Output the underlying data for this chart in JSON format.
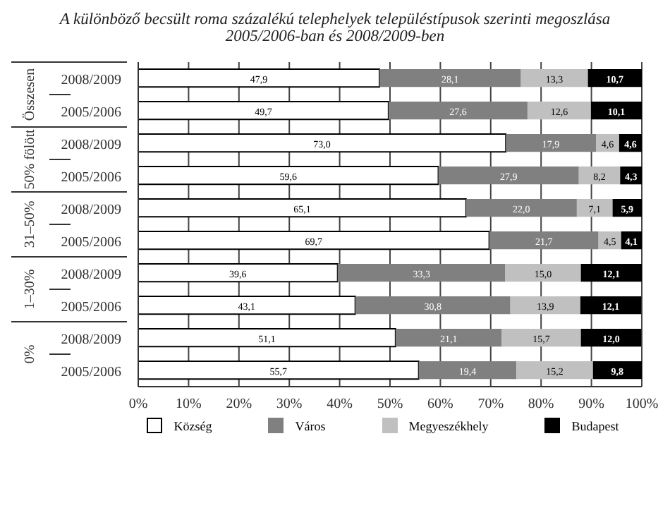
{
  "chart_data": {
    "type": "bar",
    "orientation": "horizontal",
    "stacked": true,
    "title": "A különböző becsült roma százalékú telephelyek településtípusok szerinti megoszlása",
    "subtitle": "2005/2006-ban és 2008/2009-ben",
    "categories": [
      "2008/2009",
      "2005/2006",
      "2008/2009",
      "2005/2006",
      "2008/2009",
      "2005/2006",
      "2008/2009",
      "2005/2006",
      "2008/2009",
      "2005/2006"
    ],
    "annotations": [
      "Összesen",
      "50% fölött",
      "31–50%",
      "1–30%",
      "0%"
    ],
    "series": [
      {
        "name": "Község",
        "color": "#ffffff",
        "values": [
          47.9,
          49.7,
          73.0,
          59.6,
          65.1,
          69.7,
          39.6,
          43.1,
          51.1,
          55.7
        ],
        "value_labels": [
          "47,9",
          "49,7",
          "73,0",
          "59,6",
          "65,1",
          "69,7",
          "39,6",
          "43,1",
          "51,1",
          "55,7"
        ]
      },
      {
        "name": "Város",
        "color": "#808080",
        "values": [
          28.1,
          27.6,
          17.9,
          27.9,
          22.0,
          21.7,
          33.3,
          30.8,
          21.1,
          19.4
        ],
        "value_labels": [
          "28,1",
          "27,6",
          "17,9",
          "27,9",
          "22,0",
          "21,7",
          "33,3",
          "30,8",
          "21,1",
          "19,4"
        ]
      },
      {
        "name": "Megyeszékhely",
        "color": "#c0c0c0",
        "values": [
          13.3,
          12.6,
          4.6,
          8.2,
          7.1,
          4.5,
          15.0,
          13.9,
          15.7,
          15.2
        ],
        "value_labels": [
          "13,3",
          "12,6",
          "4,6",
          "8,2",
          "7,1",
          "4,5",
          "15,0",
          "13,9",
          "15,7",
          "15,2"
        ]
      },
      {
        "name": "Budapest",
        "color": "#000000",
        "values": [
          10.7,
          10.1,
          4.6,
          4.3,
          5.9,
          4.1,
          12.1,
          12.1,
          12.0,
          9.8
        ],
        "value_labels": [
          "10,7",
          "10,1",
          "4,6",
          "4,3",
          "5,9",
          "4,1",
          "12,1",
          "12,1",
          "12,0",
          "9,8"
        ]
      }
    ],
    "xlim": [
      0,
      100
    ],
    "xticks": [
      {
        "value": 0,
        "label": "0%"
      },
      {
        "value": 10,
        "label": "10%"
      },
      {
        "value": 20,
        "label": "20%"
      },
      {
        "value": 30,
        "label": "30%"
      },
      {
        "value": 40,
        "label": "40%"
      },
      {
        "value": 50,
        "label": "50%"
      },
      {
        "value": 60,
        "label": "60%"
      },
      {
        "value": 70,
        "label": "70%"
      },
      {
        "value": 80,
        "label": "80%"
      },
      {
        "value": 90,
        "label": "90%"
      },
      {
        "value": 100,
        "label": "100%"
      }
    ],
    "grid": "x",
    "legend": "bottom"
  }
}
